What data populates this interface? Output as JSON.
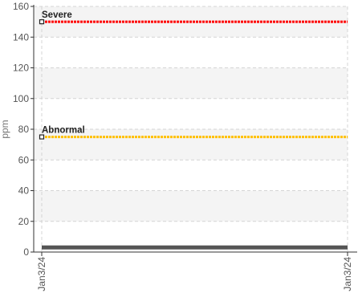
{
  "chart_data": {
    "type": "line",
    "ylabel": "ppm",
    "xlabel": "",
    "ylim": [
      0,
      160
    ],
    "y_ticks": [
      0,
      20,
      40,
      60,
      80,
      100,
      120,
      140,
      160
    ],
    "x_ticks": [
      "Jan3/24",
      "Jan3/24"
    ],
    "grid": true,
    "band_colors": [
      "#ffffff",
      "#f4f4f4"
    ],
    "thresholds": [
      {
        "label": "Severe",
        "value": 150,
        "color": "#ff0000"
      },
      {
        "label": "Abnormal",
        "value": 75,
        "color": "#ffc000"
      }
    ],
    "series": [
      {
        "values": [
          3,
          3
        ],
        "color": "#555555"
      }
    ]
  }
}
